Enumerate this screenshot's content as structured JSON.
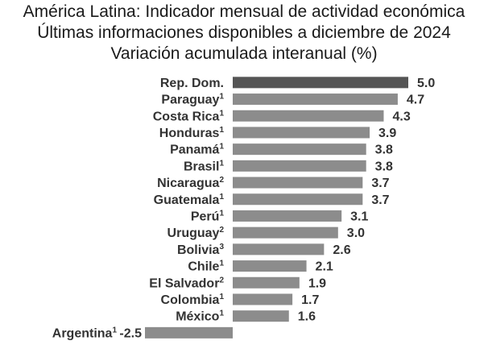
{
  "chart_data": {
    "type": "bar",
    "orientation": "horizontal",
    "title": "América Latina: Indicador mensual de actividad económica",
    "subtitle": "Últimas informaciones disponibles a diciembre de 2024",
    "subtitle2": "Variación acumulada interanual (%)",
    "xlabel": "",
    "ylabel": "",
    "xlim": [
      -2.5,
      5.0
    ],
    "categories": [
      {
        "name": "Rep. Dom.",
        "note": "",
        "value": 5.0,
        "label": "5.0"
      },
      {
        "name": "Paraguay",
        "note": "1",
        "value": 4.7,
        "label": "4.7"
      },
      {
        "name": "Costa Rica",
        "note": "1",
        "value": 4.3,
        "label": "4.3"
      },
      {
        "name": "Honduras",
        "note": "1",
        "value": 3.9,
        "label": "3.9"
      },
      {
        "name": "Panamá",
        "note": "1",
        "value": 3.8,
        "label": "3.8"
      },
      {
        "name": "Brasil",
        "note": "1",
        "value": 3.8,
        "label": "3.8"
      },
      {
        "name": "Nicaragua",
        "note": "2",
        "value": 3.7,
        "label": "3.7"
      },
      {
        "name": "Guatemala",
        "note": "1",
        "value": 3.7,
        "label": "3.7"
      },
      {
        "name": "Perú",
        "note": "1",
        "value": 3.1,
        "label": "3.1"
      },
      {
        "name": "Uruguay",
        "note": "2",
        "value": 3.0,
        "label": "3.0"
      },
      {
        "name": "Bolivia",
        "note": "3",
        "value": 2.6,
        "label": "2.6"
      },
      {
        "name": "Chile",
        "note": "1",
        "value": 2.1,
        "label": "2.1"
      },
      {
        "name": "El Salvador",
        "note": "2",
        "value": 1.9,
        "label": "1.9"
      },
      {
        "name": "Colombia",
        "note": "1",
        "value": 1.7,
        "label": "1.7"
      },
      {
        "name": "México",
        "note": "1",
        "value": 1.6,
        "label": "1.6"
      },
      {
        "name": "Argentina",
        "note": "1",
        "value": -2.5,
        "label": "-2.5"
      }
    ],
    "colors": {
      "highlight": "#555555",
      "bar": "#8c8c8c",
      "text": "#333333"
    }
  }
}
